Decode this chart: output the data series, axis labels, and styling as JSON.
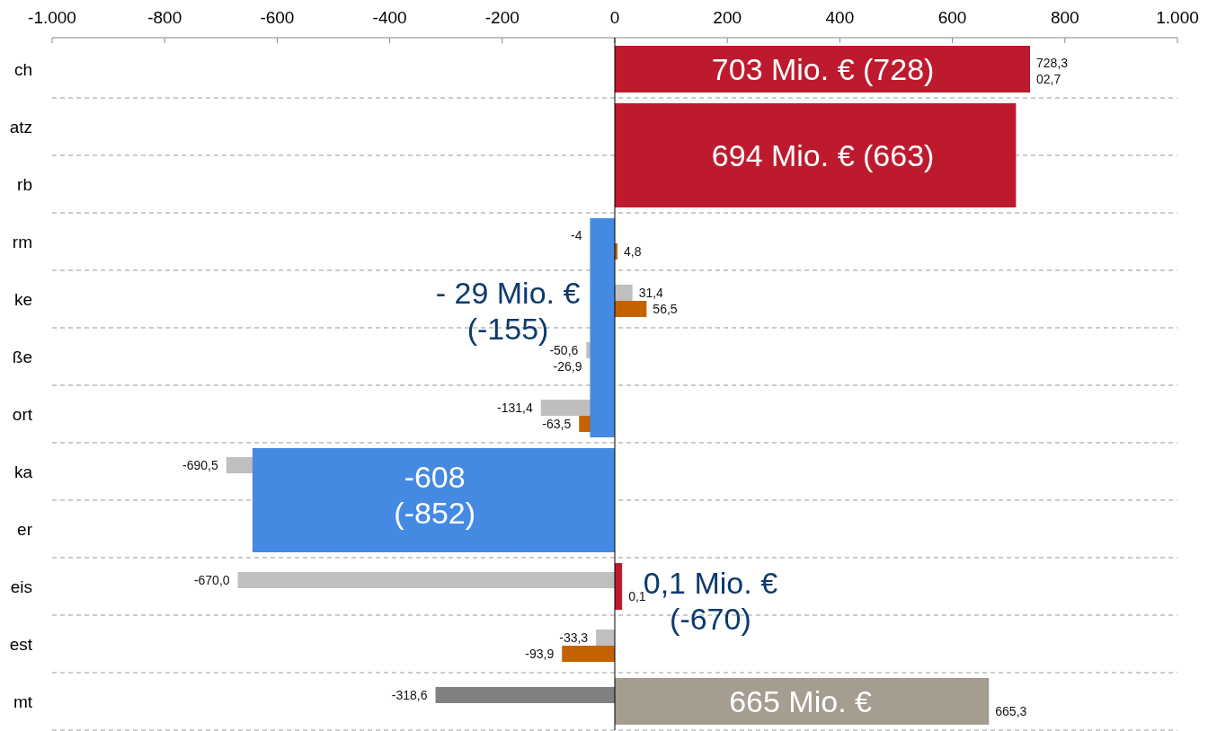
{
  "chart_data": {
    "type": "bar",
    "orientation": "horizontal",
    "categories": [
      "ch",
      "atz",
      "rb",
      "rm",
      "ke",
      "ße",
      "ort",
      "ka",
      "er",
      "eis",
      "est",
      "mt"
    ],
    "xlim": [
      -1000,
      1000
    ],
    "xticks": [
      {
        "value": -1000,
        "label": "-1.000"
      },
      -800,
      -600,
      -400,
      -200,
      0,
      200,
      400,
      600,
      800,
      {
        "value": 1000,
        "label": "1.000"
      }
    ],
    "grid": "y",
    "series": [
      {
        "colors": [
          null,
          null,
          null,
          null,
          "#bfbfbf",
          "#bfbfbf",
          "#bfbfbf",
          "#bfbfbf",
          null,
          "#bfbfbf",
          "#bfbfbf",
          "#808080"
        ],
        "values": [
          null,
          null,
          null,
          null,
          31.4,
          -50.6,
          -131.4,
          -690.5,
          null,
          -670.0,
          -33.3,
          -318.6
        ],
        "value_labels": [
          "728,3",
          null,
          null,
          "-4",
          "31,4",
          "-50,6",
          "-131,4",
          "-690,5",
          null,
          "-670,0",
          "-33,3",
          "-318,6"
        ]
      },
      {
        "color": "#c46200",
        "values": [
          null,
          null,
          null,
          4.8,
          56.5,
          null,
          -63.5,
          null,
          null,
          null,
          -93.9,
          null
        ],
        "value_labels": [
          "02,7",
          null,
          null,
          "4,8",
          "56,5",
          "-26,9",
          "-63,5",
          null,
          null,
          "0,1",
          "-93,9",
          "665,3"
        ]
      },
      {
        "colors": [
          "#be1a2e",
          "#be1a2e",
          "#be1a2e",
          "#448ae2",
          "#448ae2",
          "#448ae2",
          "#448ae2",
          "#448ae2",
          "#448ae2",
          "#be1a2e",
          null,
          "#a59d90"
        ],
        "values": [
          738,
          713,
          713,
          -44,
          -44,
          -44,
          -44,
          -644,
          -644,
          13,
          null,
          665
        ]
      }
    ],
    "annotations": [
      "703 Mio. € (728)",
      "694 Mio. € (663)",
      "- 29 Mio. €\n(-155)",
      "-608\n(-852)",
      "0,1 Mio. €\n(-670)",
      "665 Mio. €"
    ]
  }
}
